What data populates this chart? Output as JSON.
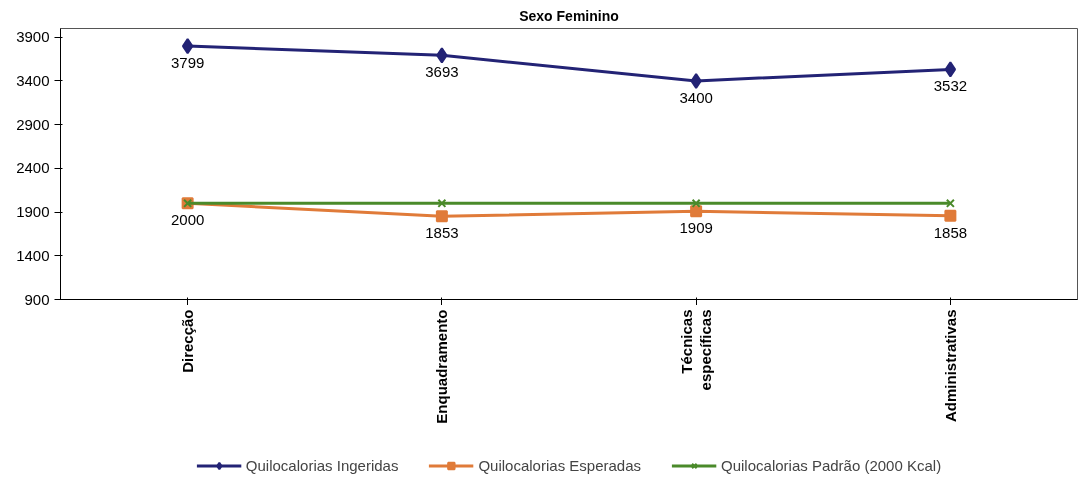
{
  "chart_data": {
    "type": "line",
    "title": "Sexo Feminino",
    "categories": [
      "Direcção",
      "Enquadramento",
      "Técnicas específicas",
      "Administrativas"
    ],
    "series": [
      {
        "name": "Quilocalorias Ingeridas",
        "color": "#232375",
        "marker": "diamond",
        "values": [
          3799,
          3693,
          3400,
          3532
        ],
        "value_labels": [
          "3799",
          "3693",
          "3400",
          "3532"
        ]
      },
      {
        "name": "Quilocalorias Esperadas",
        "color": "#e07b39",
        "marker": "square",
        "values": [
          2000,
          1853,
          1909,
          1858
        ],
        "value_labels": [
          "2000",
          "1853",
          "1909",
          "1858"
        ]
      },
      {
        "name": "Quilocalorias Padrão (2000 Kcal)",
        "color": "#4a8a2a",
        "marker": "cross",
        "values": [
          2000,
          2000,
          2000,
          2000
        ]
      }
    ],
    "ylim": [
      900,
      4000
    ],
    "yticks": [
      900,
      1400,
      1900,
      2400,
      2900,
      3400,
      3900
    ],
    "grid": false,
    "legend": "bottom"
  }
}
